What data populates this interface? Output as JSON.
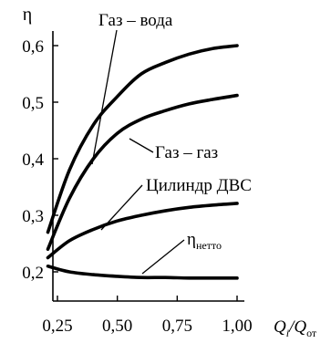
{
  "chart_data": {
    "type": "line",
    "ylabel": "η",
    "xlabel": {
      "main": "Q",
      "main_sub": "i",
      "slash": "/",
      "denom": "Q",
      "denom_sub": "от"
    },
    "xlim": [
      0.2,
      1.0
    ],
    "ylim": [
      0.17,
      0.62
    ],
    "x_ticks": [
      0.25,
      0.5,
      0.75,
      1.0
    ],
    "x_tick_labels": [
      "0,25",
      "0,50",
      "0,75",
      "1,00"
    ],
    "y_ticks": [
      0.2,
      0.3,
      0.4,
      0.5,
      0.6
    ],
    "y_tick_labels": [
      "0,2",
      "0,3",
      "0,4",
      "0,5",
      "0,6"
    ],
    "grid": false,
    "legend": "none",
    "series": [
      {
        "name": "Газ – вода",
        "x": [
          0.21,
          0.3,
          0.4,
          0.5,
          0.6,
          0.7,
          0.8,
          0.9,
          1.0
        ],
        "y": [
          0.27,
          0.38,
          0.46,
          0.51,
          0.55,
          0.57,
          0.585,
          0.595,
          0.6
        ]
      },
      {
        "name": "Газ – газ",
        "x": [
          0.21,
          0.3,
          0.4,
          0.5,
          0.6,
          0.7,
          0.8,
          0.9,
          1.0
        ],
        "y": [
          0.24,
          0.33,
          0.4,
          0.445,
          0.47,
          0.485,
          0.497,
          0.505,
          0.512
        ]
      },
      {
        "name": "Цилиндр ДВС",
        "x": [
          0.21,
          0.3,
          0.4,
          0.5,
          0.6,
          0.7,
          0.8,
          0.9,
          1.0
        ],
        "y": [
          0.225,
          0.255,
          0.275,
          0.29,
          0.3,
          0.308,
          0.314,
          0.318,
          0.321
        ]
      },
      {
        "name": "ηнетто",
        "name_main": "η",
        "name_sub": "нетто",
        "x": [
          0.21,
          0.3,
          0.4,
          0.5,
          0.6,
          0.7,
          0.8,
          0.9,
          1.0
        ],
        "y": [
          0.21,
          0.2,
          0.195,
          0.192,
          0.19,
          0.19,
          0.189,
          0.189,
          0.189
        ]
      }
    ]
  }
}
